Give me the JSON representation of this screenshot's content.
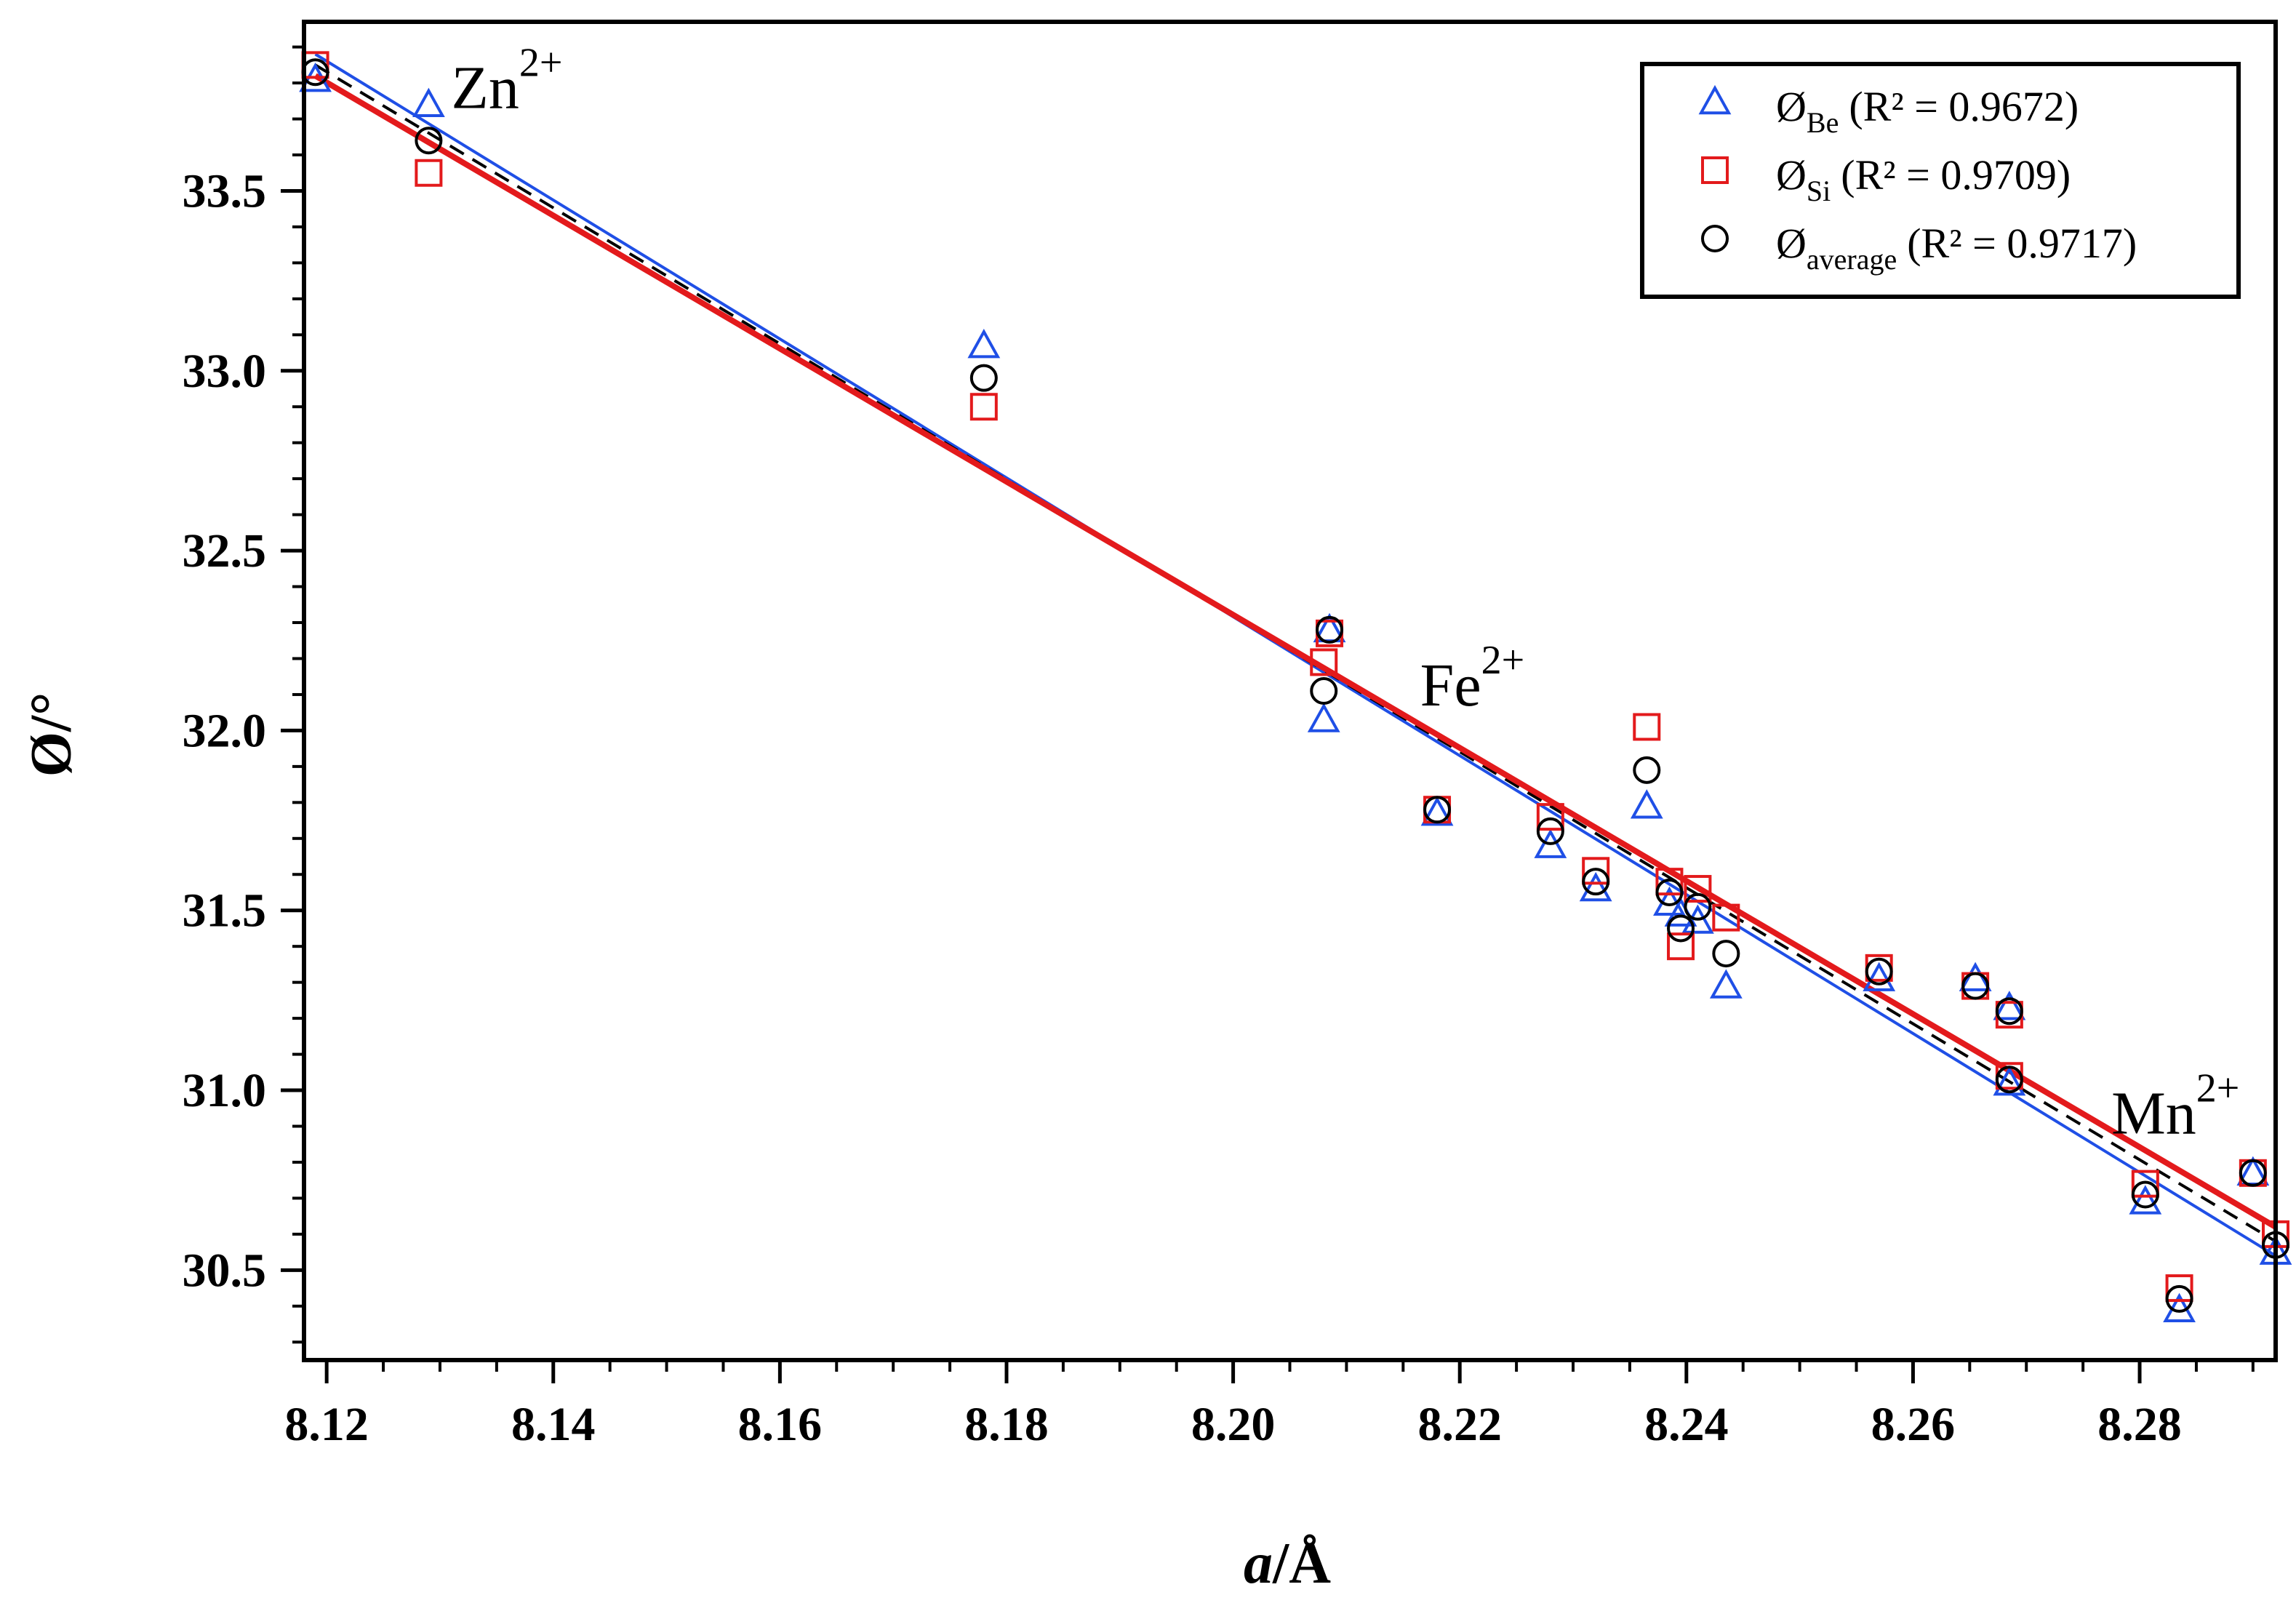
{
  "chart_data": {
    "type": "scatter",
    "title": "",
    "xlabel": "a/Å",
    "xlabel_parts": {
      "italic": "a",
      "rest": "/Å"
    },
    "ylabel": "Ø/°",
    "xlim": [
      8.118,
      8.292
    ],
    "ylim": [
      30.25,
      33.97
    ],
    "x_ticks": [
      8.12,
      8.14,
      8.16,
      8.18,
      8.2,
      8.22,
      8.24,
      8.26,
      8.28
    ],
    "x_tick_labels": [
      "8.12",
      "8.14",
      "8.16",
      "8.18",
      "8.20",
      "8.22",
      "8.24",
      "8.26",
      "8.28"
    ],
    "y_ticks": [
      30.5,
      31.0,
      31.5,
      32.0,
      32.5,
      33.0,
      33.5
    ],
    "y_tick_labels": [
      "30.5",
      "31.0",
      "31.5",
      "32.0",
      "32.5",
      "33.0",
      "33.5"
    ],
    "x_minor_step": 0.005,
    "y_minor_step": 0.1,
    "legend_position": "top-right",
    "colors": {
      "be": "#1f4fe6",
      "si": "#e31a1c",
      "avg": "#000000"
    },
    "annotations": [
      {
        "base": "Zn",
        "sup": "2+",
        "x": 8.131,
        "y": 33.73
      },
      {
        "base": "Fe",
        "sup": "2+",
        "x": 8.2165,
        "y": 32.07
      },
      {
        "base": "Mn",
        "sup": "2+",
        "x": 8.2775,
        "y": 30.88
      }
    ],
    "series": [
      {
        "name": "Ø_Be",
        "legend_base": "Ø",
        "legend_sub": "Be",
        "legend_r2": "(R² = 0.9672)",
        "marker": "triangle",
        "color": "#1f4fe6",
        "fit": {
          "style": "solid",
          "width": 4,
          "x": [
            8.119,
            8.292
          ],
          "y": [
            33.88,
            30.54
          ]
        },
        "x": [
          8.119,
          8.129,
          8.178,
          8.208,
          8.2085,
          8.218,
          8.228,
          8.232,
          8.2365,
          8.2385,
          8.2395,
          8.241,
          8.2435,
          8.257,
          8.2655,
          8.2685,
          8.2685,
          8.2805,
          8.2835,
          8.29,
          8.292
        ],
        "y": [
          33.81,
          33.74,
          33.07,
          32.03,
          32.28,
          31.77,
          31.68,
          31.56,
          31.79,
          31.52,
          31.49,
          31.47,
          31.29,
          31.31,
          31.31,
          31.23,
          31.02,
          30.69,
          30.39,
          30.77,
          30.55
        ]
      },
      {
        "name": "Ø_Si",
        "legend_base": "Ø",
        "legend_sub": "Si",
        "legend_r2": "(R² = 0.9709)",
        "marker": "square",
        "color": "#e31a1c",
        "fit": {
          "style": "solid",
          "width": 8,
          "x": [
            8.119,
            8.292
          ],
          "y": [
            33.82,
            30.62
          ]
        },
        "x": [
          8.119,
          8.129,
          8.178,
          8.208,
          8.2085,
          8.218,
          8.228,
          8.232,
          8.2365,
          8.2385,
          8.2395,
          8.241,
          8.2435,
          8.257,
          8.2655,
          8.2685,
          8.2685,
          8.2805,
          8.2835,
          8.29,
          8.292
        ],
        "y": [
          33.85,
          33.55,
          32.9,
          32.19,
          32.27,
          31.78,
          31.76,
          31.61,
          32.01,
          31.58,
          31.4,
          31.56,
          31.48,
          31.34,
          31.29,
          31.21,
          31.04,
          30.74,
          30.45,
          30.77,
          30.6
        ]
      },
      {
        "name": "Ø_average",
        "legend_base": "Ø",
        "legend_sub": "average",
        "legend_r2": "(R² = 0.9717)",
        "marker": "circle",
        "color": "#000000",
        "fit": {
          "style": "dashed",
          "width": 4,
          "x": [
            8.119,
            8.292
          ],
          "y": [
            33.85,
            30.58
          ]
        },
        "x": [
          8.119,
          8.129,
          8.178,
          8.208,
          8.2085,
          8.218,
          8.228,
          8.232,
          8.2365,
          8.2385,
          8.2395,
          8.241,
          8.2435,
          8.257,
          8.2655,
          8.2685,
          8.2685,
          8.2805,
          8.2835,
          8.29,
          8.292
        ],
        "y": [
          33.83,
          33.64,
          32.98,
          32.11,
          32.28,
          31.78,
          31.72,
          31.58,
          31.89,
          31.55,
          31.45,
          31.51,
          31.38,
          31.33,
          31.29,
          31.22,
          31.03,
          30.71,
          30.42,
          30.77,
          30.57
        ]
      }
    ]
  }
}
